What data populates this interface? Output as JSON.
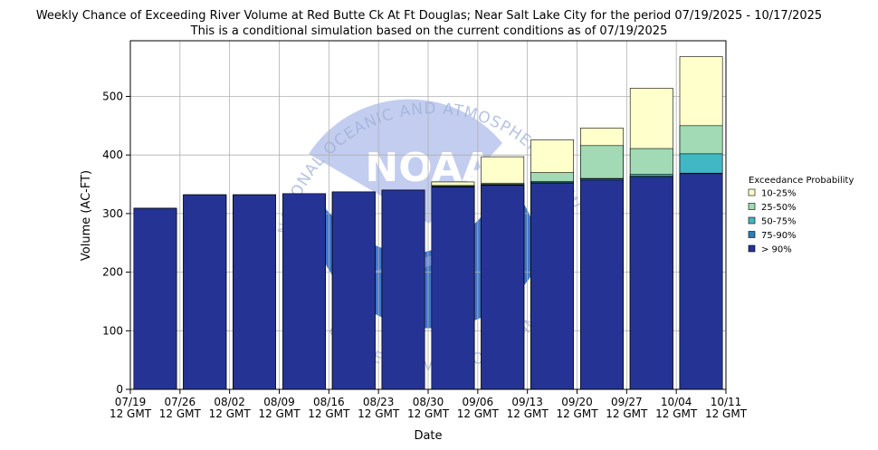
{
  "chart_data": {
    "type": "bar",
    "title": "Weekly Chance of Exceeding River Volume at Red Butte Ck At Ft Douglas; Near Salt Lake City for the period 07/19/2025 - 10/17/2025",
    "subtitle": "This is a conditional simulation based on the current conditions as of 07/19/2025",
    "xlabel": "Date",
    "ylabel": "Volume (AC-FT)",
    "ylim": [
      0,
      595
    ],
    "yticks": [
      0,
      100,
      200,
      300,
      400,
      500
    ],
    "grid": true,
    "x_ticks": [
      {
        "line1": "07/19",
        "line2": "12 GMT"
      },
      {
        "line1": "07/26",
        "line2": "12 GMT"
      },
      {
        "line1": "08/02",
        "line2": "12 GMT"
      },
      {
        "line1": "08/09",
        "line2": "12 GMT"
      },
      {
        "line1": "08/16",
        "line2": "12 GMT"
      },
      {
        "line1": "08/23",
        "line2": "12 GMT"
      },
      {
        "line1": "08/30",
        "line2": "12 GMT"
      },
      {
        "line1": "09/06",
        "line2": "12 GMT"
      },
      {
        "line1": "09/13",
        "line2": "12 GMT"
      },
      {
        "line1": "09/20",
        "line2": "12 GMT"
      },
      {
        "line1": "09/27",
        "line2": "12 GMT"
      },
      {
        "line1": "10/04",
        "line2": "12 GMT"
      },
      {
        "line1": "10/11",
        "line2": "12 GMT"
      }
    ],
    "categories": [
      "07/19",
      "07/26",
      "08/02",
      "08/09",
      "08/16",
      "08/23",
      "08/30",
      "09/06",
      "09/13",
      "09/20",
      "09/27",
      "10/04"
    ],
    "legend": {
      "title": "Exceedance Probability",
      "placement": "right",
      "entries": [
        {
          "label": "10-25%",
          "color": "#ffffcc"
        },
        {
          "label": "25-50%",
          "color": "#a1dab4"
        },
        {
          "label": "50-75%",
          "color": "#41b6c4"
        },
        {
          "label": "75-90%",
          "color": "#2c7fb8"
        },
        {
          "label": "> 90%",
          "color": "#253494"
        }
      ]
    },
    "series": [
      {
        "name": "> 90%",
        "values": [
          309,
          332,
          332,
          334,
          337,
          340,
          345,
          348,
          352,
          357,
          362,
          368
        ]
      },
      {
        "name": "75-90%",
        "values": [
          309,
          332,
          332,
          334,
          337,
          340,
          346,
          349,
          353,
          359,
          364,
          369
        ]
      },
      {
        "name": "50-75%",
        "values": [
          309,
          332,
          332,
          334,
          337,
          340,
          347,
          350,
          355,
          360,
          367,
          402
        ]
      },
      {
        "name": "25-50%",
        "values": [
          309,
          332,
          332,
          334,
          337,
          340,
          348,
          352,
          370,
          416,
          411,
          450
        ]
      },
      {
        "name": "10-25%",
        "values": [
          309,
          332,
          332,
          334,
          337,
          340,
          354,
          397,
          426,
          446,
          514,
          568
        ]
      }
    ]
  },
  "watermark": {
    "logo_text": "NOAA",
    "ring_text": "NATIONAL OCEANIC AND ATMOSPHERIC ADMINISTRATION",
    "lower_text": "U.S. DEPARTMENT OF COMMERCE",
    "colors": {
      "sky": "#c2cdef",
      "sea": "#1f5ec4",
      "wave": "#7a97e0"
    }
  }
}
